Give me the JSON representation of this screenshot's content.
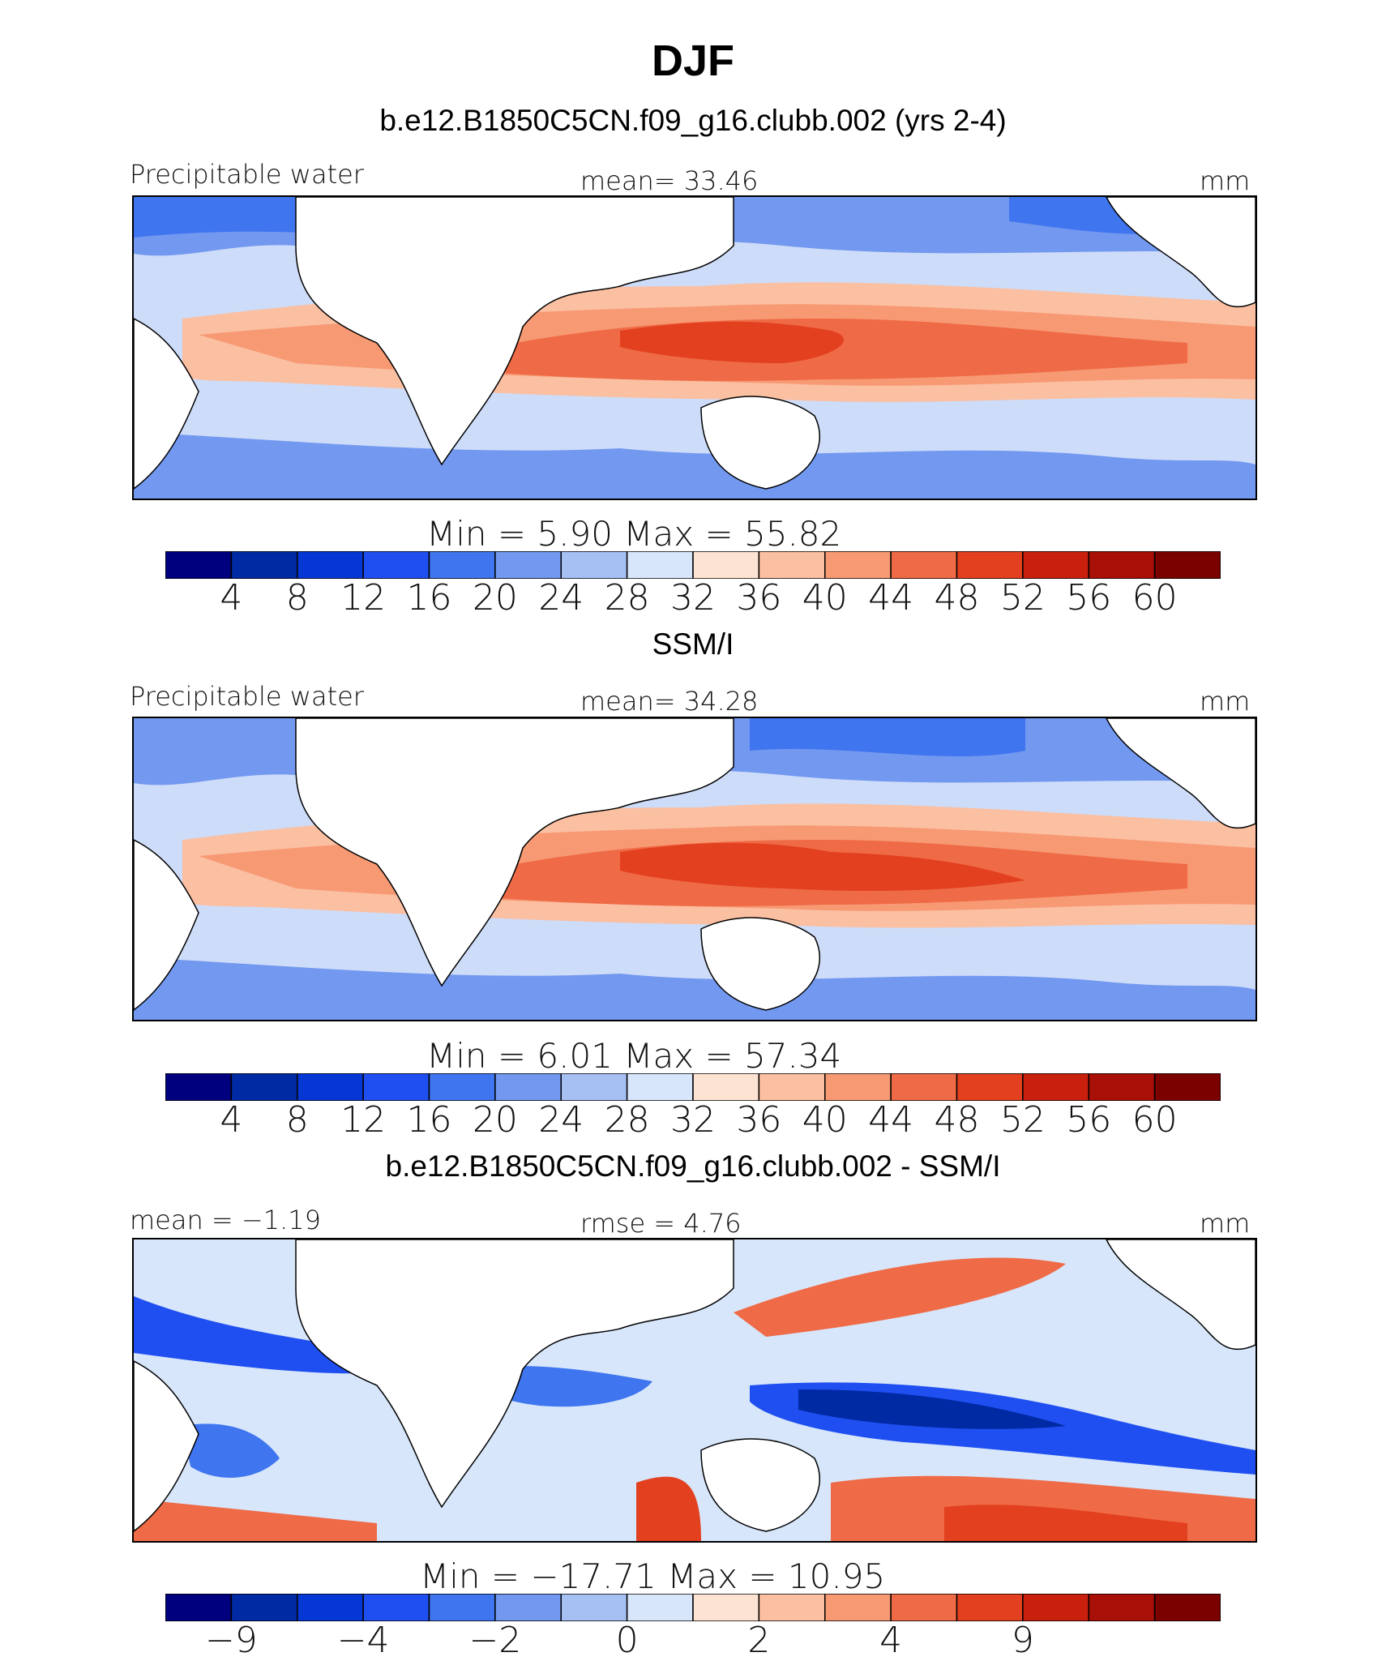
{
  "season_title": "DJF",
  "panels": [
    {
      "title": "b.e12.B1850C5CN.f09_g16.clubb.002 (yrs 2-4)",
      "left_label": "Precipitable water",
      "center_label": "mean=   33.46",
      "units": "mm",
      "minmax_label": "Min  =     5.90  Max  =    55.82"
    },
    {
      "title": "SSM/I",
      "left_label": "Precipitable water",
      "center_label": "mean=   34.28",
      "units": "mm",
      "minmax_label": "Min  =     6.01  Max  =    57.34"
    },
    {
      "title": "b.e12.B1850C5CN.f09_g16.clubb.002 - SSM/I",
      "left_label": "mean  =   −1.19",
      "center_label": "rmse  =     4.76",
      "units": "mm",
      "minmax_label": "Min  =  −17.71  Max  =    10.95"
    }
  ],
  "chart_data": [
    {
      "type": "heatmap",
      "title": "b.e12.B1850C5CN.f09_g16.clubb.002 (yrs 2-4)",
      "variable": "Precipitable water",
      "units": "mm",
      "mean": 33.46,
      "min": 5.9,
      "max": 55.82,
      "levels": [
        4,
        8,
        12,
        16,
        20,
        24,
        28,
        32,
        36,
        40,
        44,
        48,
        52,
        56,
        60
      ],
      "tick_labels": [
        "4",
        "8",
        "12",
        "16",
        "20",
        "24",
        "28",
        "32",
        "36",
        "40",
        "44",
        "48",
        "52",
        "56",
        "60"
      ]
    },
    {
      "type": "heatmap",
      "title": "SSM/I",
      "variable": "Precipitable water",
      "units": "mm",
      "mean": 34.28,
      "min": 6.01,
      "max": 57.34,
      "levels": [
        4,
        8,
        12,
        16,
        20,
        24,
        28,
        32,
        36,
        40,
        44,
        48,
        52,
        56,
        60
      ],
      "tick_labels": [
        "4",
        "8",
        "12",
        "16",
        "20",
        "24",
        "28",
        "32",
        "36",
        "40",
        "44",
        "48",
        "52",
        "56",
        "60"
      ]
    },
    {
      "type": "heatmap",
      "title": "b.e12.B1850C5CN.f09_g16.clubb.002 - SSM/I",
      "units": "mm",
      "mean": -1.19,
      "rmse": 4.76,
      "min": -17.71,
      "max": 10.95,
      "levels": [
        -9,
        -6,
        -4,
        -3,
        -2,
        -1,
        0,
        1,
        2,
        3,
        4,
        6,
        9
      ],
      "tick_labels": [
        "−9",
        "−4",
        "−2",
        "0",
        "2",
        "4",
        "9"
      ],
      "labeled_levels": [
        -9,
        -4,
        -2,
        0,
        2,
        4,
        9
      ]
    }
  ],
  "colors": {
    "palette": [
      "#00007f",
      "#002aa3",
      "#0537d4",
      "#1f4ff0",
      "#3f75ef",
      "#7398f0",
      "#a6c0f4",
      "#d7e6fb",
      "#fde3d1",
      "#fbbfa2",
      "#f79a74",
      "#ef6a46",
      "#e3401f",
      "#c91f0d",
      "#a80f06",
      "#7b0000"
    ],
    "land": "#ffffff",
    "coastline": "#000000"
  }
}
